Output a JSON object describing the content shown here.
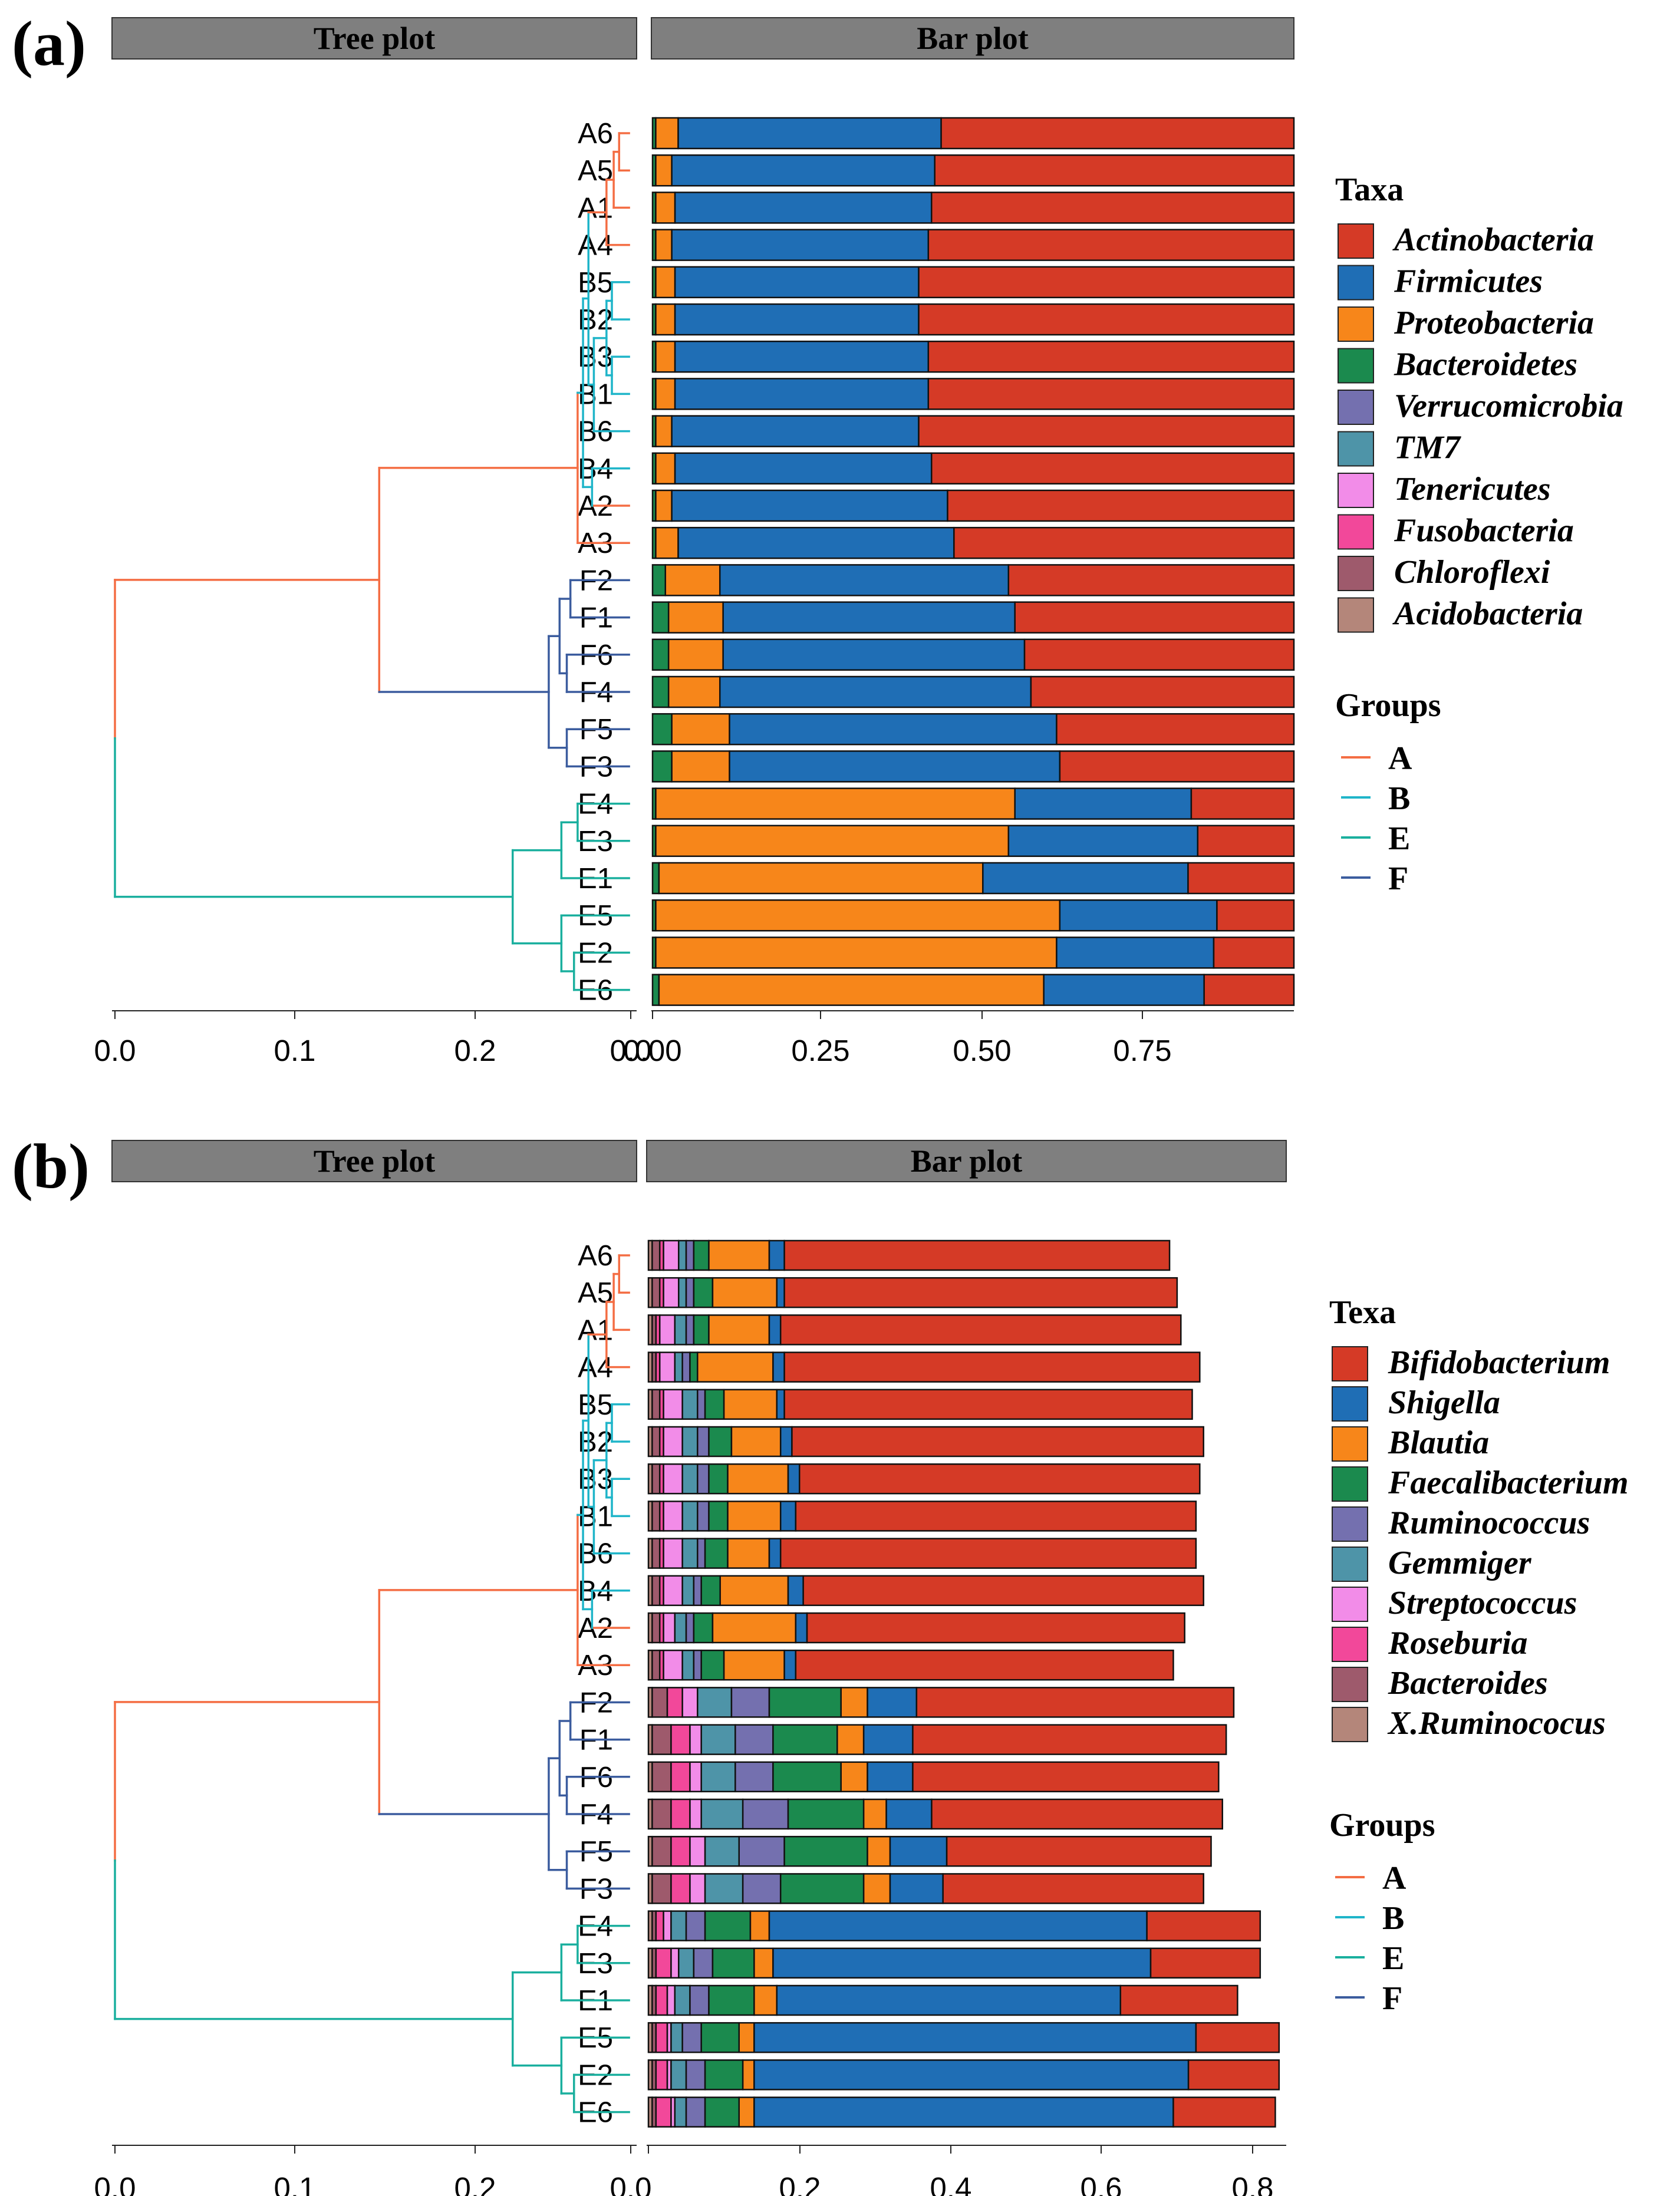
{
  "colors": {
    "strip": "#7f7f7f",
    "groups": {
      "A": "#F46D43",
      "B": "#1FB5C9",
      "E": "#1AAF9E",
      "F": "#3B5C9E"
    }
  },
  "chart_data": [
    {
      "panel_label": "(a)",
      "type": "bar",
      "orientation": "horizontal-stacked",
      "tree_strip_title": "Tree plot",
      "bar_strip_title": "Bar plot",
      "tree_ticks": [
        "0.0",
        "0.1",
        "0.2",
        "0.0"
      ],
      "tree_xlim": [
        0,
        0.3
      ],
      "bar_ticks": [
        "0.00",
        "0.25",
        "0.50",
        "0.75"
      ],
      "bar_xlim": [
        0,
        1.0
      ],
      "samples": [
        "A6",
        "A5",
        "A1",
        "A4",
        "B5",
        "B2",
        "B3",
        "B1",
        "B6",
        "B4",
        "A2",
        "A3",
        "F2",
        "F1",
        "F6",
        "F4",
        "F5",
        "F3",
        "E4",
        "E3",
        "E1",
        "E5",
        "E2",
        "E6"
      ],
      "legend_title": "Taxa",
      "series": [
        {
          "name": "Actinobacteria",
          "color": "#D53A26"
        },
        {
          "name": "Firmicutes",
          "color": "#1F6EB5"
        },
        {
          "name": "Proteobacteria",
          "color": "#F7861A"
        },
        {
          "name": "Bacteroidetes",
          "color": "#1B8A4E"
        },
        {
          "name": "Verrucomicrobia",
          "color": "#7470AF"
        },
        {
          "name": "TM7",
          "color": "#4E94A8"
        },
        {
          "name": "Tenericutes",
          "color": "#F28CE8"
        },
        {
          "name": "Fusobacteria",
          "color": "#F2489A"
        },
        {
          "name": "Chloroflexi",
          "color": "#9E5A6C"
        },
        {
          "name": "Acidobacteria",
          "color": "#B4867A"
        }
      ],
      "stacks": [
        {
          "sample": "A6",
          "Bacteroidetes": 0.005,
          "Proteobacteria": 0.035,
          "Firmicutes": 0.41,
          "Actinobacteria": 0.55
        },
        {
          "sample": "A5",
          "Bacteroidetes": 0.005,
          "Proteobacteria": 0.025,
          "Firmicutes": 0.41,
          "Actinobacteria": 0.56
        },
        {
          "sample": "A1",
          "Bacteroidetes": 0.005,
          "Proteobacteria": 0.03,
          "Firmicutes": 0.4,
          "Actinobacteria": 0.565
        },
        {
          "sample": "A4",
          "Bacteroidetes": 0.005,
          "Proteobacteria": 0.025,
          "Firmicutes": 0.4,
          "Actinobacteria": 0.57
        },
        {
          "sample": "B5",
          "Bacteroidetes": 0.005,
          "Proteobacteria": 0.03,
          "Firmicutes": 0.38,
          "Actinobacteria": 0.585
        },
        {
          "sample": "B2",
          "Bacteroidetes": 0.005,
          "Proteobacteria": 0.03,
          "Firmicutes": 0.38,
          "Actinobacteria": 0.585
        },
        {
          "sample": "B3",
          "Bacteroidetes": 0.005,
          "Proteobacteria": 0.03,
          "Firmicutes": 0.395,
          "Actinobacteria": 0.57
        },
        {
          "sample": "B1",
          "Bacteroidetes": 0.005,
          "Proteobacteria": 0.03,
          "Firmicutes": 0.395,
          "Actinobacteria": 0.57
        },
        {
          "sample": "B6",
          "Bacteroidetes": 0.005,
          "Proteobacteria": 0.025,
          "Firmicutes": 0.385,
          "Actinobacteria": 0.585
        },
        {
          "sample": "B4",
          "Bacteroidetes": 0.005,
          "Proteobacteria": 0.03,
          "Firmicutes": 0.4,
          "Actinobacteria": 0.565
        },
        {
          "sample": "A2",
          "Bacteroidetes": 0.005,
          "Proteobacteria": 0.025,
          "Firmicutes": 0.43,
          "Actinobacteria": 0.54
        },
        {
          "sample": "A3",
          "Bacteroidetes": 0.005,
          "Proteobacteria": 0.035,
          "Firmicutes": 0.43,
          "Actinobacteria": 0.53
        },
        {
          "sample": "F2",
          "Bacteroidetes": 0.02,
          "Proteobacteria": 0.085,
          "Firmicutes": 0.45,
          "Actinobacteria": 0.445
        },
        {
          "sample": "F1",
          "Bacteroidetes": 0.025,
          "Proteobacteria": 0.085,
          "Firmicutes": 0.455,
          "Actinobacteria": 0.435
        },
        {
          "sample": "F6",
          "Bacteroidetes": 0.025,
          "Proteobacteria": 0.085,
          "Firmicutes": 0.47,
          "Actinobacteria": 0.42
        },
        {
          "sample": "F4",
          "Bacteroidetes": 0.025,
          "Proteobacteria": 0.08,
          "Firmicutes": 0.485,
          "Actinobacteria": 0.41
        },
        {
          "sample": "F5",
          "Bacteroidetes": 0.03,
          "Proteobacteria": 0.09,
          "Firmicutes": 0.51,
          "Actinobacteria": 0.37
        },
        {
          "sample": "F3",
          "Bacteroidetes": 0.03,
          "Proteobacteria": 0.09,
          "Firmicutes": 0.515,
          "Actinobacteria": 0.365
        },
        {
          "sample": "E4",
          "Bacteroidetes": 0.005,
          "Proteobacteria": 0.56,
          "Firmicutes": 0.275,
          "Actinobacteria": 0.16
        },
        {
          "sample": "E3",
          "Bacteroidetes": 0.005,
          "Proteobacteria": 0.55,
          "Firmicutes": 0.295,
          "Actinobacteria": 0.15
        },
        {
          "sample": "E1",
          "Bacteroidetes": 0.01,
          "Proteobacteria": 0.505,
          "Firmicutes": 0.32,
          "Actinobacteria": 0.165
        },
        {
          "sample": "E5",
          "Bacteroidetes": 0.005,
          "Proteobacteria": 0.63,
          "Firmicutes": 0.245,
          "Actinobacteria": 0.12
        },
        {
          "sample": "E2",
          "Bacteroidetes": 0.005,
          "Proteobacteria": 0.625,
          "Firmicutes": 0.245,
          "Actinobacteria": 0.125
        },
        {
          "sample": "E6",
          "Bacteroidetes": 0.01,
          "Proteobacteria": 0.6,
          "Firmicutes": 0.25,
          "Actinobacteria": 0.14
        }
      ]
    },
    {
      "panel_label": "(b)",
      "type": "bar",
      "orientation": "horizontal-stacked",
      "tree_strip_title": "Tree plot",
      "bar_strip_title": "Bar plot",
      "tree_ticks": [
        "0.0",
        "0.1",
        "0.2",
        "0.0"
      ],
      "tree_xlim": [
        0,
        0.3
      ],
      "bar_ticks": [
        "0.2",
        "0.4",
        "0.6",
        "0.8"
      ],
      "bar_xlim": [
        0,
        0.85
      ],
      "samples": [
        "A6",
        "A5",
        "A1",
        "A4",
        "B5",
        "B2",
        "B3",
        "B1",
        "B6",
        "B4",
        "A2",
        "A3",
        "F2",
        "F1",
        "F6",
        "F4",
        "F5",
        "F3",
        "E4",
        "E3",
        "E1",
        "E5",
        "E2",
        "E6"
      ],
      "legend_title": "Texa",
      "series": [
        {
          "name": "Bifidobacterium",
          "color": "#D53A26"
        },
        {
          "name": "Shigella",
          "color": "#1F6EB5"
        },
        {
          "name": "Blautia",
          "color": "#F7861A"
        },
        {
          "name": "Faecalibacterium",
          "color": "#1B8A4E"
        },
        {
          "name": "Ruminococcus",
          "color": "#7470AF"
        },
        {
          "name": "Gemmiger",
          "color": "#4E94A8"
        },
        {
          "name": "Streptococcus",
          "color": "#F28CE8"
        },
        {
          "name": "Roseburia",
          "color": "#F2489A"
        },
        {
          "name": "Bacteroides",
          "color": "#9E5A6C"
        },
        {
          "name": "X.Ruminococus",
          "color": "#B4867A"
        }
      ],
      "stacks": [
        {
          "sample": "A6",
          "X.Ruminococus": 0.005,
          "Bacteroides": 0.01,
          "Roseburia": 0.005,
          "Streptococcus": 0.02,
          "Gemmiger": 0.01,
          "Ruminococcus": 0.01,
          "Faecalibacterium": 0.02,
          "Blautia": 0.08,
          "Shigella": 0.02,
          "Bifidobacterium": 0.51
        },
        {
          "sample": "A5",
          "X.Ruminococus": 0.005,
          "Bacteroides": 0.01,
          "Roseburia": 0.005,
          "Streptococcus": 0.02,
          "Gemmiger": 0.01,
          "Ruminococcus": 0.01,
          "Faecalibacterium": 0.025,
          "Blautia": 0.085,
          "Shigella": 0.01,
          "Bifidobacterium": 0.52
        },
        {
          "sample": "A1",
          "X.Ruminococus": 0.005,
          "Bacteroides": 0.005,
          "Roseburia": 0.005,
          "Streptococcus": 0.02,
          "Gemmiger": 0.015,
          "Ruminococcus": 0.01,
          "Faecalibacterium": 0.02,
          "Blautia": 0.08,
          "Shigella": 0.015,
          "Bifidobacterium": 0.53
        },
        {
          "sample": "A4",
          "X.Ruminococus": 0.005,
          "Bacteroides": 0.005,
          "Roseburia": 0.005,
          "Streptococcus": 0.02,
          "Gemmiger": 0.01,
          "Ruminococcus": 0.01,
          "Faecalibacterium": 0.01,
          "Blautia": 0.1,
          "Shigella": 0.015,
          "Bifidobacterium": 0.55
        },
        {
          "sample": "B5",
          "X.Ruminococus": 0.005,
          "Bacteroides": 0.01,
          "Roseburia": 0.005,
          "Streptococcus": 0.025,
          "Gemmiger": 0.02,
          "Ruminococcus": 0.01,
          "Faecalibacterium": 0.025,
          "Blautia": 0.07,
          "Shigella": 0.01,
          "Bifidobacterium": 0.54
        },
        {
          "sample": "B2",
          "X.Ruminococus": 0.005,
          "Bacteroides": 0.01,
          "Roseburia": 0.005,
          "Streptococcus": 0.025,
          "Gemmiger": 0.02,
          "Ruminococcus": 0.015,
          "Faecalibacterium": 0.03,
          "Blautia": 0.065,
          "Shigella": 0.015,
          "Bifidobacterium": 0.545
        },
        {
          "sample": "B3",
          "X.Ruminococus": 0.005,
          "Bacteroides": 0.01,
          "Roseburia": 0.005,
          "Streptococcus": 0.025,
          "Gemmiger": 0.02,
          "Ruminococcus": 0.015,
          "Faecalibacterium": 0.025,
          "Blautia": 0.08,
          "Shigella": 0.015,
          "Bifidobacterium": 0.53
        },
        {
          "sample": "B1",
          "X.Ruminococus": 0.005,
          "Bacteroides": 0.01,
          "Roseburia": 0.005,
          "Streptococcus": 0.025,
          "Gemmiger": 0.02,
          "Ruminococcus": 0.015,
          "Faecalibacterium": 0.025,
          "Blautia": 0.07,
          "Shigella": 0.02,
          "Bifidobacterium": 0.53
        },
        {
          "sample": "B6",
          "X.Ruminococus": 0.005,
          "Bacteroides": 0.01,
          "Roseburia": 0.005,
          "Streptococcus": 0.025,
          "Gemmiger": 0.02,
          "Ruminococcus": 0.01,
          "Faecalibacterium": 0.03,
          "Blautia": 0.055,
          "Shigella": 0.015,
          "Bifidobacterium": 0.55
        },
        {
          "sample": "B4",
          "X.Ruminococus": 0.005,
          "Bacteroides": 0.01,
          "Roseburia": 0.005,
          "Streptococcus": 0.025,
          "Gemmiger": 0.015,
          "Ruminococcus": 0.01,
          "Faecalibacterium": 0.025,
          "Blautia": 0.09,
          "Shigella": 0.02,
          "Bifidobacterium": 0.53
        },
        {
          "sample": "A2",
          "X.Ruminococus": 0.005,
          "Bacteroides": 0.01,
          "Roseburia": 0.005,
          "Streptococcus": 0.015,
          "Gemmiger": 0.015,
          "Ruminococcus": 0.01,
          "Faecalibacterium": 0.025,
          "Blautia": 0.11,
          "Shigella": 0.015,
          "Bifidobacterium": 0.5
        },
        {
          "sample": "A3",
          "X.Ruminococus": 0.005,
          "Bacteroides": 0.01,
          "Roseburia": 0.005,
          "Streptococcus": 0.025,
          "Gemmiger": 0.015,
          "Ruminococcus": 0.01,
          "Faecalibacterium": 0.03,
          "Blautia": 0.08,
          "Shigella": 0.015,
          "Bifidobacterium": 0.5
        },
        {
          "sample": "F2",
          "X.Ruminococus": 0.005,
          "Bacteroides": 0.02,
          "Roseburia": 0.02,
          "Streptococcus": 0.02,
          "Gemmiger": 0.045,
          "Ruminococcus": 0.05,
          "Faecalibacterium": 0.095,
          "Blautia": 0.035,
          "Shigella": 0.065,
          "Bifidobacterium": 0.42
        },
        {
          "sample": "F1",
          "X.Ruminococus": 0.005,
          "Bacteroides": 0.025,
          "Roseburia": 0.025,
          "Streptococcus": 0.015,
          "Gemmiger": 0.045,
          "Ruminococcus": 0.05,
          "Faecalibacterium": 0.085,
          "Blautia": 0.035,
          "Shigella": 0.065,
          "Bifidobacterium": 0.415
        },
        {
          "sample": "F6",
          "X.Ruminococus": 0.005,
          "Bacteroides": 0.025,
          "Roseburia": 0.025,
          "Streptococcus": 0.015,
          "Gemmiger": 0.045,
          "Ruminococcus": 0.05,
          "Faecalibacterium": 0.09,
          "Blautia": 0.035,
          "Shigella": 0.06,
          "Bifidobacterium": 0.405
        },
        {
          "sample": "F4",
          "X.Ruminococus": 0.005,
          "Bacteroides": 0.025,
          "Roseburia": 0.025,
          "Streptococcus": 0.015,
          "Gemmiger": 0.055,
          "Ruminococcus": 0.06,
          "Faecalibacterium": 0.1,
          "Blautia": 0.03,
          "Shigella": 0.06,
          "Bifidobacterium": 0.385
        },
        {
          "sample": "F5",
          "X.Ruminococus": 0.005,
          "Bacteroides": 0.025,
          "Roseburia": 0.025,
          "Streptococcus": 0.02,
          "Gemmiger": 0.045,
          "Ruminococcus": 0.06,
          "Faecalibacterium": 0.11,
          "Blautia": 0.03,
          "Shigella": 0.075,
          "Bifidobacterium": 0.35
        },
        {
          "sample": "F3",
          "X.Ruminococus": 0.005,
          "Bacteroides": 0.025,
          "Roseburia": 0.025,
          "Streptococcus": 0.02,
          "Gemmiger": 0.05,
          "Ruminococcus": 0.05,
          "Faecalibacterium": 0.11,
          "Blautia": 0.035,
          "Shigella": 0.07,
          "Bifidobacterium": 0.345
        },
        {
          "sample": "E4",
          "X.Ruminococus": 0.005,
          "Bacteroides": 0.005,
          "Roseburia": 0.01,
          "Streptococcus": 0.01,
          "Gemmiger": 0.02,
          "Ruminococcus": 0.025,
          "Faecalibacterium": 0.06,
          "Blautia": 0.025,
          "Shigella": 0.5,
          "Bifidobacterium": 0.15
        },
        {
          "sample": "E3",
          "X.Ruminococus": 0.005,
          "Bacteroides": 0.005,
          "Roseburia": 0.02,
          "Streptococcus": 0.01,
          "Gemmiger": 0.02,
          "Ruminococcus": 0.025,
          "Faecalibacterium": 0.055,
          "Blautia": 0.025,
          "Shigella": 0.5,
          "Bifidobacterium": 0.145
        },
        {
          "sample": "E1",
          "X.Ruminococus": 0.005,
          "Bacteroides": 0.005,
          "Roseburia": 0.015,
          "Streptococcus": 0.01,
          "Gemmiger": 0.02,
          "Ruminococcus": 0.025,
          "Faecalibacterium": 0.06,
          "Blautia": 0.03,
          "Shigella": 0.455,
          "Bifidobacterium": 0.155
        },
        {
          "sample": "E5",
          "X.Ruminococus": 0.005,
          "Bacteroides": 0.005,
          "Roseburia": 0.015,
          "Streptococcus": 0.005,
          "Gemmiger": 0.015,
          "Ruminococcus": 0.025,
          "Faecalibacterium": 0.05,
          "Blautia": 0.02,
          "Shigella": 0.585,
          "Bifidobacterium": 0.11
        },
        {
          "sample": "E2",
          "X.Ruminococus": 0.005,
          "Bacteroides": 0.005,
          "Roseburia": 0.015,
          "Streptococcus": 0.005,
          "Gemmiger": 0.02,
          "Ruminococcus": 0.025,
          "Faecalibacterium": 0.05,
          "Blautia": 0.015,
          "Shigella": 0.575,
          "Bifidobacterium": 0.12
        },
        {
          "sample": "E6",
          "X.Ruminococus": 0.005,
          "Bacteroides": 0.005,
          "Roseburia": 0.02,
          "Streptococcus": 0.005,
          "Gemmiger": 0.015,
          "Ruminococcus": 0.025,
          "Faecalibacterium": 0.045,
          "Blautia": 0.02,
          "Shigella": 0.555,
          "Bifidobacterium": 0.135
        }
      ]
    }
  ],
  "groups_legend": {
    "title": "Groups",
    "items": [
      "A",
      "B",
      "E",
      "F"
    ]
  }
}
